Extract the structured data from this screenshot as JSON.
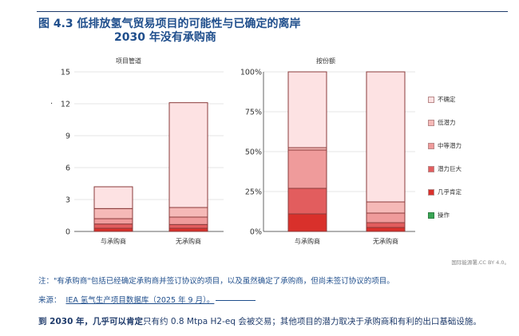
{
  "figure": {
    "title_line1": "图 4.3 低排放氢气贸易项目的可能性与已确定的离岸",
    "title_line2": "2030 年没有承购商"
  },
  "colors": {
    "certain": "#d9302b",
    "huge": "#e25d5e",
    "medium": "#ef9b9b",
    "low": "#f5b9b7",
    "uncertain": "#fde2e3",
    "operation": "#3aa655",
    "outline": "#8a3b3b"
  },
  "chart_data": [
    {
      "type": "bar",
      "stacked": true,
      "title": "项目管道",
      "categories": [
        "与承购商",
        "无承购商"
      ],
      "ylim": [
        0,
        15
      ],
      "yticks": [
        0,
        3,
        6,
        9,
        12,
        15
      ],
      "series": [
        {
          "name": "操作",
          "color_key": "operation",
          "values": [
            0,
            0
          ]
        },
        {
          "name": "几乎肯定",
          "color_key": "certain",
          "values": [
            0.3,
            0.3
          ]
        },
        {
          "name": "潜力巨大",
          "color_key": "huge",
          "values": [
            0.4,
            0.35
          ]
        },
        {
          "name": "中等潜力",
          "color_key": "medium",
          "values": [
            0.5,
            0.7
          ]
        },
        {
          "name": "低潜力",
          "color_key": "low",
          "values": [
            0.95,
            0.9
          ]
        },
        {
          "name": "不确定",
          "color_key": "uncertain",
          "values": [
            2.05,
            9.85
          ]
        }
      ]
    },
    {
      "type": "bar",
      "stacked": true,
      "title": "按份额",
      "categories": [
        "与承购商",
        "无承购商"
      ],
      "ylim": [
        0,
        100
      ],
      "yticks": [
        "0%",
        "25%",
        "50%",
        "75%",
        "100%"
      ],
      "series": [
        {
          "name": "操作",
          "color_key": "operation",
          "values": [
            0,
            0
          ]
        },
        {
          "name": "几乎肯定",
          "color_key": "certain",
          "values": [
            11,
            2.5
          ]
        },
        {
          "name": "潜力巨大",
          "color_key": "huge",
          "values": [
            16,
            3
          ]
        },
        {
          "name": "中等潜力",
          "color_key": "medium",
          "values": [
            24,
            6
          ]
        },
        {
          "name": "低潜力",
          "color_key": "low",
          "values": [
            1.5,
            7
          ]
        },
        {
          "name": "不确定",
          "color_key": "uncertain",
          "values": [
            47.5,
            81.5
          ]
        }
      ]
    }
  ],
  "legend": [
    {
      "label": "不确定",
      "color_key": "uncertain"
    },
    {
      "label": "低潜力",
      "color_key": "low"
    },
    {
      "label": "中等潜力",
      "color_key": "medium"
    },
    {
      "label": "潜力巨大",
      "color_key": "huge"
    },
    {
      "label": "几乎肯定",
      "color_key": "certain"
    },
    {
      "label": "操作",
      "color_key": "operation"
    }
  ],
  "credit": "国际能源署,CC BY 4.0。",
  "note": "注：\"有承购商\"包括已经确定承购商并签订协议的项目，以及虽然确定了承购商，但尚未签订协议的项目。",
  "source": {
    "label": "来源：",
    "link": "IEA 氢气生产项目数据库（2025 年 9 月）。"
  },
  "conclusion": {
    "strong": "到 2030 年，几乎可以肯定",
    "rest": "只有约 0.8 Mtpa H2-eq 会被交易；其他项目的潜力取决于承购商和有利的出口基础设施。"
  }
}
